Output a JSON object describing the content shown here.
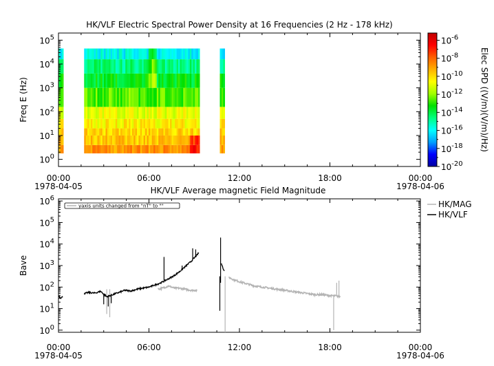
{
  "chart_data": [
    {
      "type": "heatmap",
      "title": "HK/VLF  Electric Spectral Power Density at 16 Frequencies (2 Hz - 178 kHz)",
      "ylabel": "Freq E (Hz)",
      "yscale": "log",
      "ylim_exp": [
        -0.3,
        5.3
      ],
      "y_tick_base": "10",
      "y_tick_exps": [
        "0",
        "1",
        "2",
        "3",
        "4",
        "5"
      ],
      "x_ticks": [
        "00:00",
        "06:00",
        "12:00",
        "18:00",
        "00:00"
      ],
      "x_tick_hours": [
        0,
        6,
        12,
        18,
        24
      ],
      "x_date_start": "1978-04-05",
      "x_date_end": "1978-04-06",
      "colorbar": {
        "label": "Elec SPD ((V/m)(V/m)/Hz)",
        "scale": "log",
        "range_exp": [
          -20,
          -5.2
        ],
        "tick_base": "10",
        "tick_exps": [
          "-6",
          "-8",
          "-10",
          "-12",
          "-14",
          "-16",
          "-18",
          "-20"
        ],
        "colormap": [
          "#0000a0",
          "#0000ff",
          "#00a0ff",
          "#00ffff",
          "#00ff80",
          "#00e000",
          "#a0ff00",
          "#ffff00",
          "#ffb000",
          "#ff6000",
          "#ff0000",
          "#c00000"
        ]
      },
      "data_intervals_hours": [
        [
          0.0,
          0.3
        ],
        [
          1.7,
          9.3
        ],
        [
          10.7,
          11.0
        ]
      ],
      "frequency_bands_log": [
        {
          "band": [
            0.25,
            0.6
          ],
          "log_spd": -8.8
        },
        {
          "band": [
            0.6,
            1.0
          ],
          "log_spd": -9.6
        },
        {
          "band": [
            1.0,
            1.3
          ],
          "log_spd": -9.9
        },
        {
          "band": [
            1.3,
            1.7
          ],
          "log_spd": -10.4
        },
        {
          "band": [
            1.7,
            2.2
          ],
          "log_spd": -10.9
        },
        {
          "band": [
            2.2,
            3.0
          ],
          "log_spd": -12.6
        },
        {
          "band": [
            3.0,
            3.6
          ],
          "log_spd": -13.6
        },
        {
          "band": [
            3.6,
            4.2
          ],
          "log_spd": -14.6
        },
        {
          "band": [
            4.2,
            4.65
          ],
          "log_spd": -15.9
        }
      ]
    },
    {
      "type": "line",
      "title": "HK/VLF  Average magnetic Field Magnitude",
      "ylabel": "Bave",
      "yscale": "log",
      "ylim_exp": [
        -0.1,
        6.1
      ],
      "y_tick_base": "10",
      "y_tick_exps": [
        "0",
        "1",
        "2",
        "3",
        "4",
        "5",
        "6"
      ],
      "x_ticks": [
        "00:00",
        "06:00",
        "12:00",
        "18:00",
        "00:00"
      ],
      "x_tick_hours": [
        0,
        6,
        12,
        18,
        24
      ],
      "x_date_start": "1978-04-05",
      "x_date_end": "1978-04-06",
      "annotation": "yaxis units changed from \"nT\" to \"\"",
      "series": [
        {
          "name": "HK/MAG",
          "color": "#b4b4b4",
          "x_hours": [
            6.6,
            6.9,
            7.3,
            7.7,
            8.0,
            8.4,
            8.8,
            9.2,
            11.3,
            11.6,
            12.0,
            12.5,
            13.0,
            13.5,
            14.0,
            14.5,
            15.0,
            15.5,
            16.0,
            16.5,
            17.0,
            17.5,
            18.0,
            18.3,
            18.7
          ],
          "y_log": [
            1.9,
            1.95,
            2.05,
            1.95,
            1.95,
            1.9,
            1.85,
            1.85,
            2.45,
            2.35,
            2.25,
            2.15,
            2.05,
            2.0,
            1.95,
            1.9,
            1.85,
            1.8,
            1.75,
            1.7,
            1.65,
            1.65,
            1.6,
            1.6,
            1.55
          ],
          "spikes": [
            {
              "x_hour": 3.2,
              "y_log": 0.75
            },
            {
              "x_hour": 3.4,
              "y_log": 0.6
            },
            {
              "x_hour": 11.05,
              "y_log": -0.1
            },
            {
              "x_hour": 18.25,
              "y_log": 0.0
            },
            {
              "x_hour": 18.45,
              "y_log": 2.2
            },
            {
              "x_hour": 18.6,
              "y_log": 2.3
            }
          ]
        },
        {
          "name": "HK/VLF",
          "color": "#000000",
          "x_hours": [
            0.0,
            0.15,
            0.3,
            1.7,
            2.0,
            2.4,
            2.8,
            3.2,
            3.6,
            4.0,
            4.4,
            4.8,
            5.2,
            5.6,
            6.0,
            6.4,
            6.8,
            7.2,
            7.6,
            8.0,
            8.4,
            8.8,
            9.0,
            9.2,
            9.3
          ],
          "y_log": [
            1.6,
            1.5,
            1.55,
            1.7,
            1.75,
            1.72,
            1.8,
            1.55,
            1.65,
            1.75,
            1.85,
            1.82,
            1.9,
            1.95,
            2.0,
            2.1,
            2.2,
            2.35,
            2.5,
            2.7,
            2.95,
            3.2,
            3.35,
            3.5,
            3.6
          ],
          "spikes": [
            {
              "x_hour": 3.0,
              "y_log": 1.2
            },
            {
              "x_hour": 3.3,
              "y_log": 1.1
            },
            {
              "x_hour": 3.5,
              "y_log": 1.25
            },
            {
              "x_hour": 7.0,
              "y_log": 3.4
            },
            {
              "x_hour": 8.2,
              "y_log": 3.0
            },
            {
              "x_hour": 8.9,
              "y_log": 3.8
            },
            {
              "x_hour": 9.1,
              "y_log": 3.75
            },
            {
              "x_hour": 10.7,
              "y_log": 0.9
            },
            {
              "x_hour": 10.75,
              "y_log": 4.3
            }
          ],
          "late_segment": {
            "x_hours": [
              10.8,
              10.9,
              11.0
            ],
            "y_log": [
              3.1,
              2.9,
              2.75
            ]
          }
        }
      ]
    }
  ]
}
